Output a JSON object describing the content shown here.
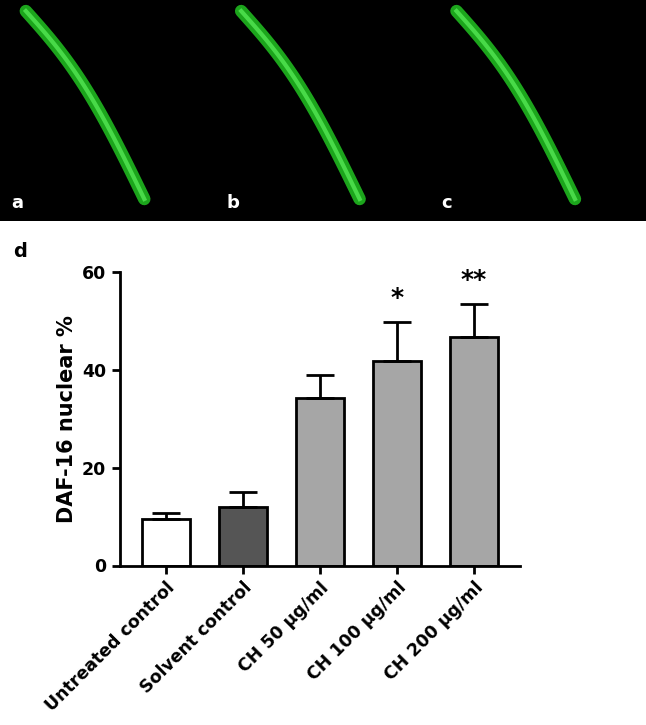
{
  "chart_data": {
    "type": "bar",
    "panel_label": "d",
    "y_label": "DAF-16 nuclear %",
    "categories": [
      "Untreated control",
      "Solvent control",
      "CH 50 µg/ml",
      "CH 100 µg/ml",
      "CH 200 µg/ml"
    ],
    "values": [
      9.6,
      12.0,
      34.2,
      41.8,
      46.7
    ],
    "errors": [
      1.2,
      3.0,
      4.8,
      8.0,
      6.7
    ],
    "colors": [
      "#ffffff",
      "#555555",
      "#a6a6a6",
      "#a6a6a6",
      "#a6a6a6"
    ],
    "ylim": [
      0,
      60
    ],
    "yticks": [
      0,
      20,
      40,
      60
    ],
    "annotations": [
      {
        "category": "CH 100 µg/ml",
        "text": "*"
      },
      {
        "category": "CH 200 µg/ml",
        "text": "**"
      }
    ]
  },
  "image_panels": {
    "labels": [
      "a",
      "b",
      "c"
    ]
  }
}
